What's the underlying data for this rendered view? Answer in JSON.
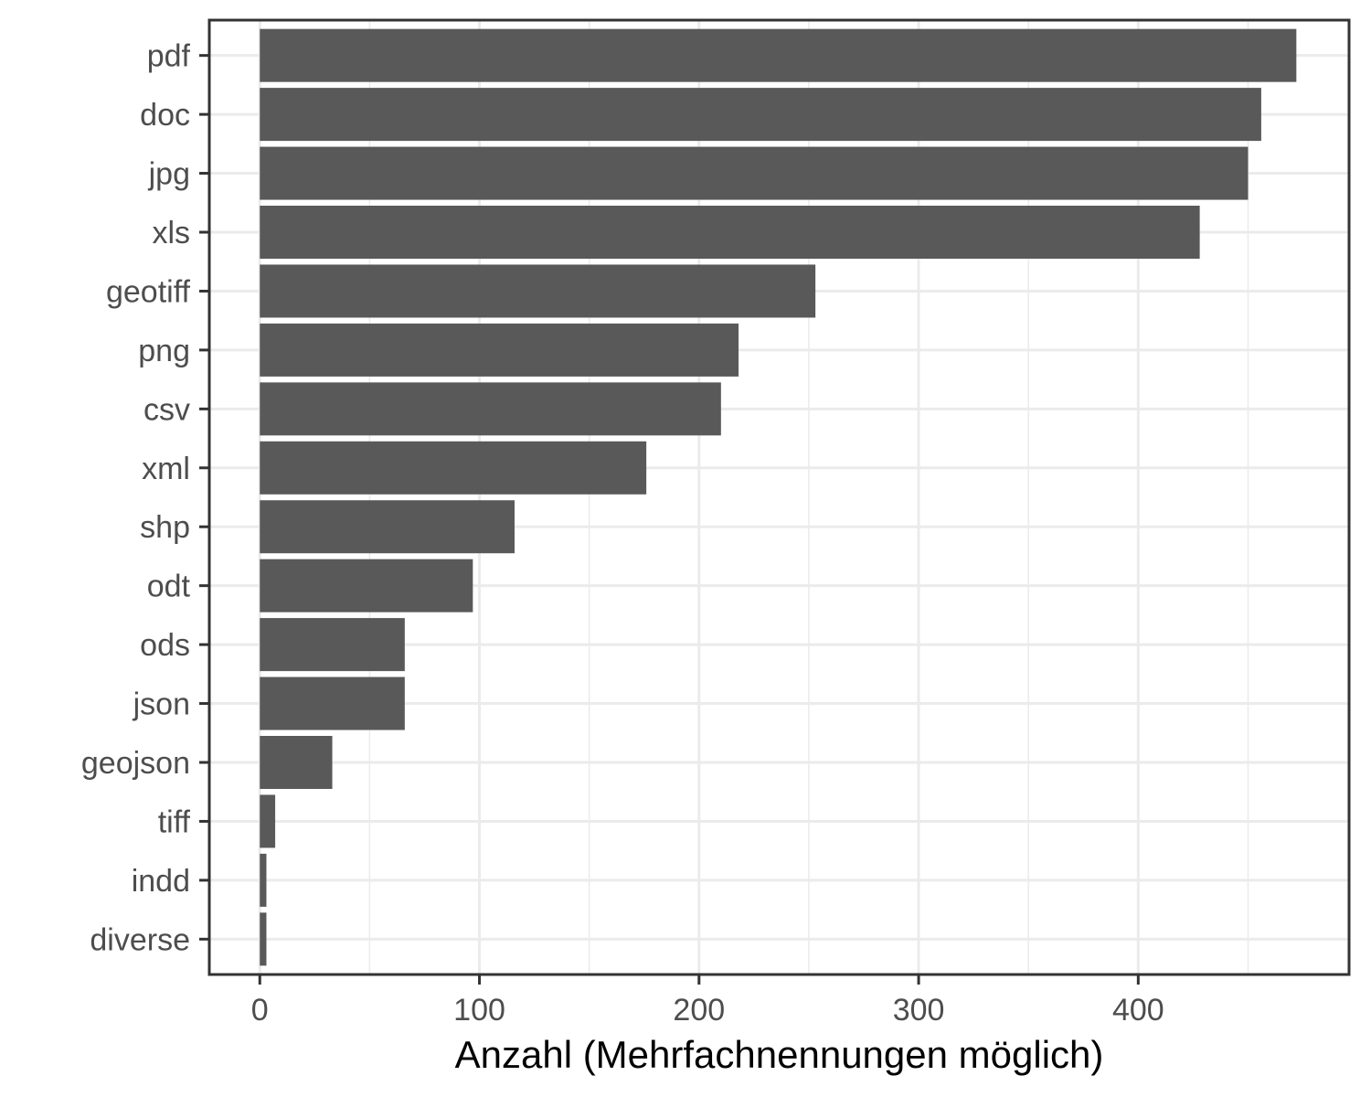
{
  "chart_data": {
    "type": "bar",
    "orientation": "horizontal",
    "categories": [
      "pdf",
      "doc",
      "jpg",
      "xls",
      "geotiff",
      "png",
      "csv",
      "xml",
      "shp",
      "odt",
      "ods",
      "json",
      "geojson",
      "tiff",
      "indd",
      "diverse"
    ],
    "values": [
      472,
      456,
      450,
      428,
      253,
      218,
      210,
      176,
      116,
      97,
      66,
      66,
      33,
      7,
      3,
      3
    ],
    "title": "",
    "xlabel": "Anzahl (Mehrfachnennungen möglich)",
    "ylabel": "",
    "xlim": [
      -23,
      496
    ],
    "xticks": [
      0,
      100,
      200,
      300,
      400
    ],
    "grid": true,
    "bar_color": "#595959",
    "grid_color": "#ebebeb",
    "panel_border_color": "#333333"
  }
}
